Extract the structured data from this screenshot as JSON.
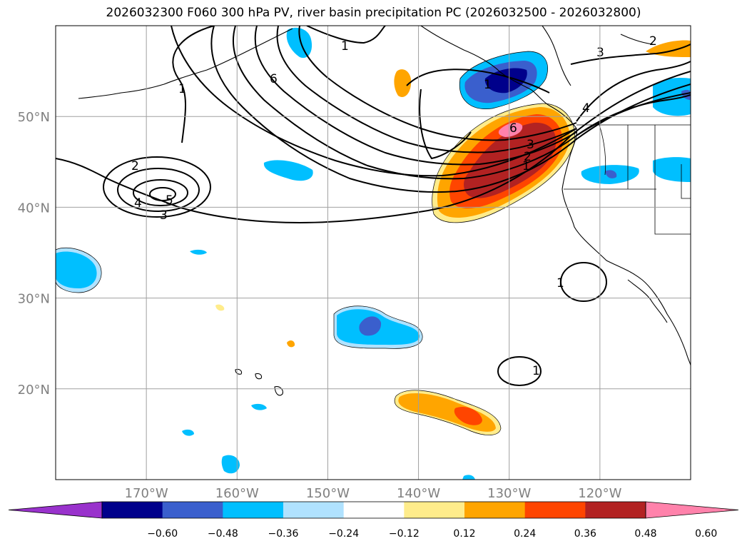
{
  "title": "2026032300 F060 300 hPa PV, river basin precipitation PC (2026032500 - 2026032800)",
  "map": {
    "lon_min": -180,
    "lon_max": -110,
    "lat_min": 10,
    "lat_max": 60,
    "lon_ticks": [
      {
        "lon": -170,
        "label": "170°W"
      },
      {
        "lon": -160,
        "label": "160°W"
      },
      {
        "lon": -150,
        "label": "150°W"
      },
      {
        "lon": -140,
        "label": "140°W"
      },
      {
        "lon": -130,
        "label": "130°W"
      },
      {
        "lon": -120,
        "label": "120°W"
      }
    ],
    "lat_ticks": [
      {
        "lat": 20,
        "label": "20°N"
      },
      {
        "lat": 30,
        "label": "30°N"
      },
      {
        "lat": 40,
        "label": "40°N"
      },
      {
        "lat": 50,
        "label": "50°N"
      }
    ],
    "tick_label_color": "#808080",
    "grid": true
  },
  "colorbar": {
    "ticks": [
      "−0.60",
      "−0.48",
      "−0.36",
      "−0.24",
      "−0.12",
      "0.12",
      "0.24",
      "0.36",
      "0.48",
      "0.60"
    ],
    "colors": [
      "#9932cc",
      "#00008b",
      "#3a5fcd",
      "#00bfff",
      "#b0e2ff",
      "#ffffff",
      "#ffec8b",
      "#ffa500",
      "#ff4500",
      "#b22222",
      "#ff82ab"
    ]
  },
  "pv_contour_labels": [
    "1",
    "1",
    "1",
    "1",
    "1",
    "2",
    "2",
    "3",
    "3",
    "4",
    "4",
    "5",
    "6",
    "6",
    "1",
    "2",
    "3"
  ]
}
